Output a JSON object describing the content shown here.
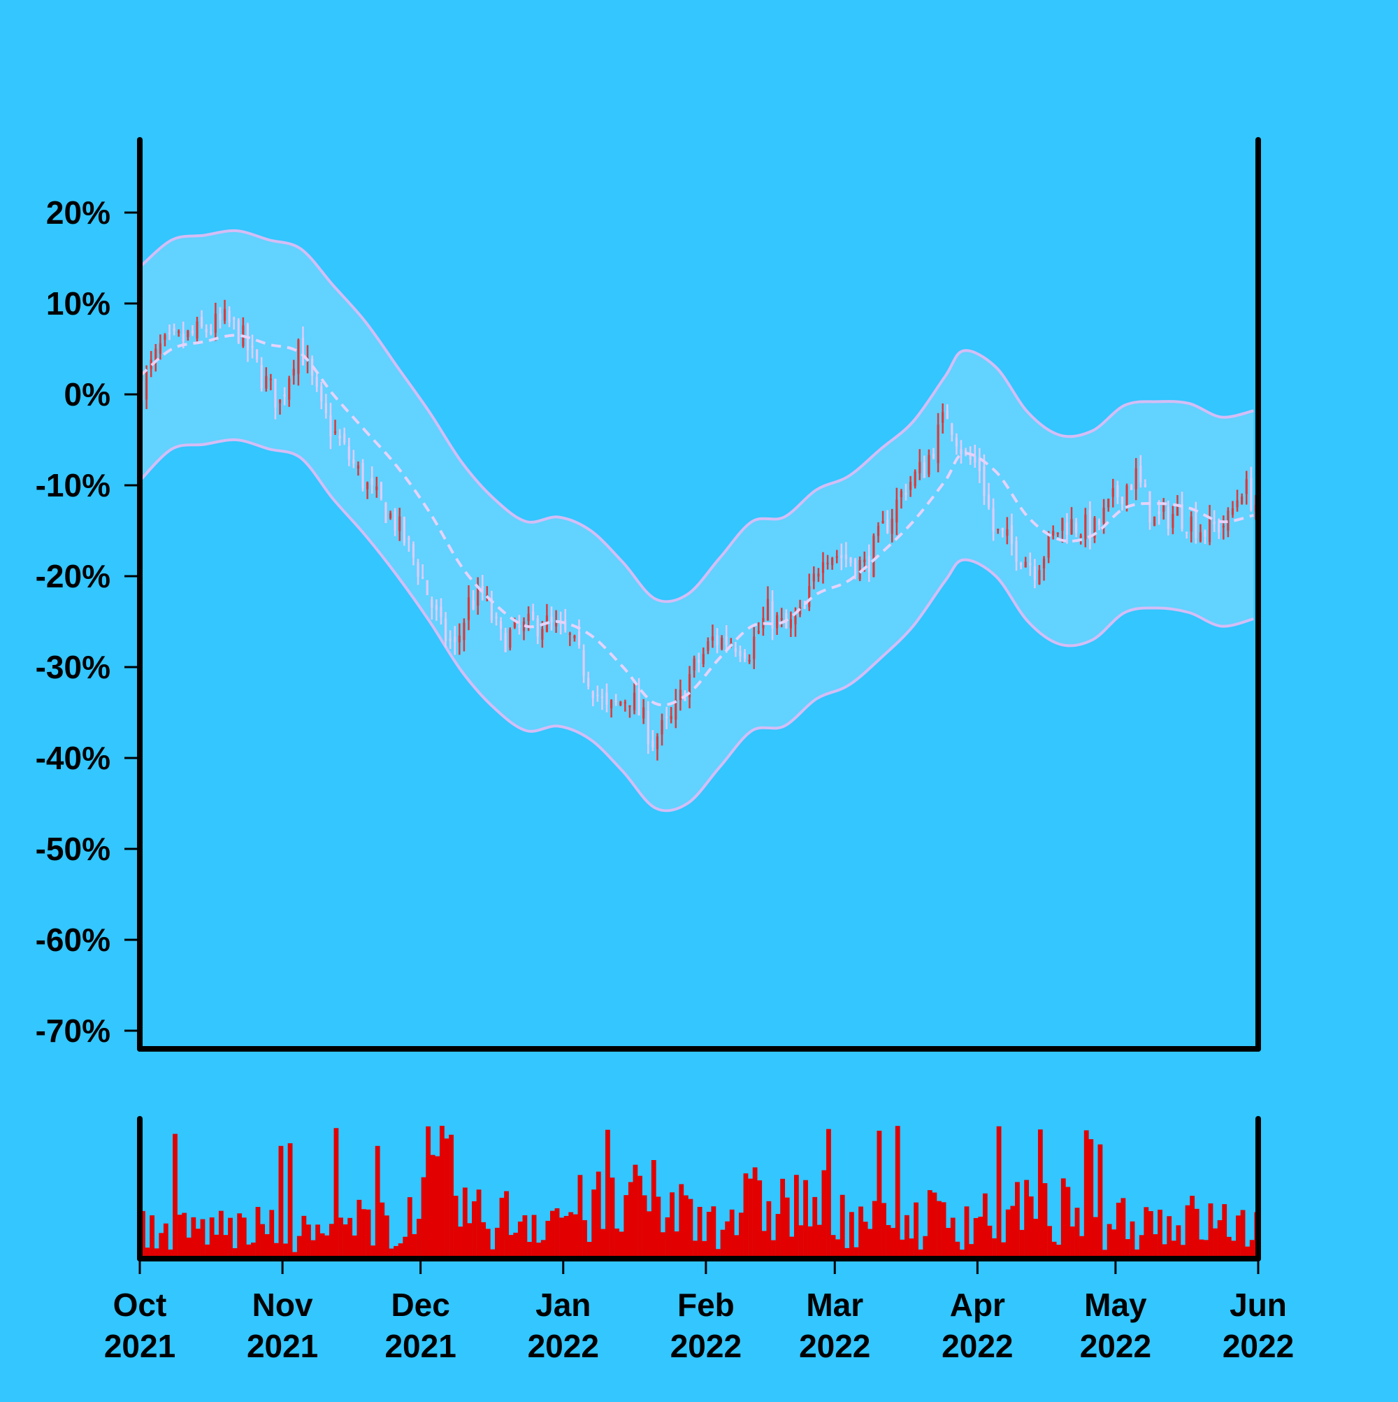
{
  "colors": {
    "background": "#33c6ff",
    "band_fill": "#62d2ff",
    "band_line": "#d5bdf5",
    "ma_line": "#e6d3fa",
    "up_bar": "#d93a3a",
    "down_bar": "#e0ccf8",
    "volume": "#e20000",
    "axis": "#000000"
  },
  "chart_data": {
    "type": "candlestick",
    "title": "",
    "ylabel": "",
    "xlabel": "",
    "ylim": [
      -72,
      28
    ],
    "y_ticks": [
      20,
      10,
      0,
      -10,
      -20,
      -30,
      -40,
      -50,
      -60,
      -70
    ],
    "y_tick_labels": [
      "20%",
      "10%",
      "0%",
      "-10%",
      "-20%",
      "-30%",
      "-40%",
      "-50%",
      "-60%",
      "-70%"
    ],
    "x_range": [
      "2021-10-01",
      "2022-06-01"
    ],
    "x_ticks": [
      "2021-10-01",
      "2021-11-01",
      "2021-12-01",
      "2022-01-01",
      "2022-02-01",
      "2022-03-01",
      "2022-04-01",
      "2022-05-01",
      "2022-06-01"
    ],
    "x_tick_labels": [
      {
        "month": "Oct",
        "year": "2021"
      },
      {
        "month": "Nov",
        "year": "2021"
      },
      {
        "month": "Dec",
        "year": "2021"
      },
      {
        "month": "Jan",
        "year": "2022"
      },
      {
        "month": "Feb",
        "year": "2022"
      },
      {
        "month": "Mar",
        "year": "2022"
      },
      {
        "month": "Apr",
        "year": "2022"
      },
      {
        "month": "May",
        "year": "2022"
      },
      {
        "month": "Jun",
        "year": "2022"
      }
    ],
    "grid": false,
    "legend": "none",
    "moving_average": {
      "style": "dashed",
      "points": [
        [
          "2021-10-01",
          2
        ],
        [
          "2021-10-08",
          5
        ],
        [
          "2021-10-15",
          5.8
        ],
        [
          "2021-10-22",
          6.5
        ],
        [
          "2021-10-29",
          5.5
        ],
        [
          "2021-11-05",
          4.5
        ],
        [
          "2021-11-12",
          0
        ],
        [
          "2021-11-19",
          -4
        ],
        [
          "2021-11-26",
          -8
        ],
        [
          "2021-12-03",
          -13
        ],
        [
          "2021-12-10",
          -19
        ],
        [
          "2021-12-17",
          -23
        ],
        [
          "2021-12-24",
          -25.5
        ],
        [
          "2021-12-31",
          -25
        ],
        [
          "2022-01-07",
          -26.5
        ],
        [
          "2022-01-14",
          -30
        ],
        [
          "2022-01-21",
          -34
        ],
        [
          "2022-01-28",
          -33
        ],
        [
          "2022-02-04",
          -29
        ],
        [
          "2022-02-11",
          -25.5
        ],
        [
          "2022-02-18",
          -25
        ],
        [
          "2022-02-25",
          -22
        ],
        [
          "2022-03-04",
          -20.5
        ],
        [
          "2022-03-11",
          -17.5
        ],
        [
          "2022-03-18",
          -14
        ],
        [
          "2022-03-25",
          -9.5
        ],
        [
          "2022-03-29",
          -6.5
        ],
        [
          "2022-04-05",
          -8.5
        ],
        [
          "2022-04-12",
          -13.5
        ],
        [
          "2022-04-19",
          -16
        ],
        [
          "2022-04-26",
          -15.5
        ],
        [
          "2022-05-03",
          -12.5
        ],
        [
          "2022-05-10",
          -12
        ],
        [
          "2022-05-17",
          -12.5
        ],
        [
          "2022-05-24",
          -14
        ],
        [
          "2022-05-31",
          -13.3
        ]
      ]
    },
    "band_upper": [
      [
        "2021-10-01",
        14
      ],
      [
        "2021-10-08",
        17
      ],
      [
        "2021-10-15",
        17.5
      ],
      [
        "2021-10-22",
        18
      ],
      [
        "2021-10-29",
        17
      ],
      [
        "2021-11-05",
        16
      ],
      [
        "2021-11-12",
        12
      ],
      [
        "2021-11-19",
        8
      ],
      [
        "2021-11-26",
        3
      ],
      [
        "2021-12-03",
        -2
      ],
      [
        "2021-12-10",
        -7.5
      ],
      [
        "2021-12-17",
        -11.5
      ],
      [
        "2021-12-24",
        -14
      ],
      [
        "2021-12-31",
        -13.5
      ],
      [
        "2022-01-07",
        -15
      ],
      [
        "2022-01-14",
        -18.5
      ],
      [
        "2022-01-21",
        -22.5
      ],
      [
        "2022-01-28",
        -22
      ],
      [
        "2022-02-04",
        -18
      ],
      [
        "2022-02-11",
        -14
      ],
      [
        "2022-02-18",
        -13.5
      ],
      [
        "2022-02-25",
        -10.5
      ],
      [
        "2022-03-04",
        -9
      ],
      [
        "2022-03-11",
        -6
      ],
      [
        "2022-03-18",
        -3
      ],
      [
        "2022-03-25",
        2
      ],
      [
        "2022-03-29",
        4.8
      ],
      [
        "2022-04-05",
        3
      ],
      [
        "2022-04-12",
        -2
      ],
      [
        "2022-04-19",
        -4.5
      ],
      [
        "2022-04-26",
        -4
      ],
      [
        "2022-05-03",
        -1.2
      ],
      [
        "2022-05-10",
        -0.8
      ],
      [
        "2022-05-17",
        -1
      ],
      [
        "2022-05-24",
        -2.5
      ],
      [
        "2022-05-31",
        -1.8
      ]
    ],
    "band_lower": [
      [
        "2021-10-01",
        -9.5
      ],
      [
        "2021-10-08",
        -6
      ],
      [
        "2021-10-15",
        -5.5
      ],
      [
        "2021-10-22",
        -5
      ],
      [
        "2021-10-29",
        -6
      ],
      [
        "2021-11-05",
        -7
      ],
      [
        "2021-11-12",
        -11.5
      ],
      [
        "2021-11-19",
        -15.5
      ],
      [
        "2021-11-26",
        -20
      ],
      [
        "2021-12-03",
        -25
      ],
      [
        "2021-12-10",
        -30.5
      ],
      [
        "2021-12-17",
        -34.5
      ],
      [
        "2021-12-24",
        -37
      ],
      [
        "2021-12-31",
        -36.5
      ],
      [
        "2022-01-07",
        -38
      ],
      [
        "2022-01-14",
        -41.5
      ],
      [
        "2022-01-21",
        -45.5
      ],
      [
        "2022-01-28",
        -45
      ],
      [
        "2022-02-04",
        -41
      ],
      [
        "2022-02-11",
        -37
      ],
      [
        "2022-02-18",
        -36.5
      ],
      [
        "2022-02-25",
        -33.5
      ],
      [
        "2022-03-04",
        -32
      ],
      [
        "2022-03-11",
        -29
      ],
      [
        "2022-03-18",
        -25.5
      ],
      [
        "2022-03-25",
        -20.5
      ],
      [
        "2022-03-29",
        -18.2
      ],
      [
        "2022-04-05",
        -20
      ],
      [
        "2022-04-12",
        -25
      ],
      [
        "2022-04-19",
        -27.5
      ],
      [
        "2022-04-26",
        -27
      ],
      [
        "2022-05-03",
        -24
      ],
      [
        "2022-05-10",
        -23.5
      ],
      [
        "2022-05-17",
        -24
      ],
      [
        "2022-05-24",
        -25.5
      ],
      [
        "2022-05-31",
        -24.7
      ]
    ],
    "price_path": [
      [
        "2021-10-01",
        1
      ],
      [
        "2021-10-05",
        5
      ],
      [
        "2021-10-12",
        6.5
      ],
      [
        "2021-10-19",
        8
      ],
      [
        "2021-10-22",
        7
      ],
      [
        "2021-10-27",
        2
      ],
      [
        "2021-10-31",
        -1
      ],
      [
        "2021-11-04",
        6
      ],
      [
        "2021-11-09",
        -2
      ],
      [
        "2021-11-15",
        -7
      ],
      [
        "2021-11-20",
        -11
      ],
      [
        "2021-11-25",
        -14
      ],
      [
        "2021-11-30",
        -19
      ],
      [
        "2021-12-05",
        -26
      ],
      [
        "2021-12-08",
        -28
      ],
      [
        "2021-12-11",
        -23
      ],
      [
        "2021-12-14",
        -22
      ],
      [
        "2021-12-18",
        -27
      ],
      [
        "2021-12-22",
        -26
      ],
      [
        "2021-12-27",
        -25
      ],
      [
        "2022-01-02",
        -27
      ],
      [
        "2022-01-06",
        -31
      ],
      [
        "2022-01-10",
        -35
      ],
      [
        "2022-01-15",
        -33
      ],
      [
        "2022-01-20",
        -38
      ],
      [
        "2022-01-24",
        -36
      ],
      [
        "2022-01-28",
        -31
      ],
      [
        "2022-02-02",
        -27
      ],
      [
        "2022-02-06",
        -27
      ],
      [
        "2022-02-10",
        -28
      ],
      [
        "2022-02-14",
        -24
      ],
      [
        "2022-02-18",
        -26
      ],
      [
        "2022-02-22",
        -24
      ],
      [
        "2022-02-26",
        -17
      ],
      [
        "2022-03-03",
        -18
      ],
      [
        "2022-03-07",
        -19
      ],
      [
        "2022-03-11",
        -15
      ],
      [
        "2022-03-16",
        -10
      ],
      [
        "2022-03-20",
        -8
      ],
      [
        "2022-03-25",
        -2
      ],
      [
        "2022-03-29",
        -7
      ],
      [
        "2022-04-01",
        -8
      ],
      [
        "2022-04-04",
        -15
      ],
      [
        "2022-04-09",
        -17
      ],
      [
        "2022-04-13",
        -19
      ],
      [
        "2022-04-19",
        -14
      ],
      [
        "2022-04-26",
        -15
      ],
      [
        "2022-05-01",
        -11
      ],
      [
        "2022-05-05",
        -9
      ],
      [
        "2022-05-09",
        -14
      ],
      [
        "2022-05-14",
        -13
      ],
      [
        "2022-05-20",
        -15
      ],
      [
        "2022-05-25",
        -14
      ],
      [
        "2022-05-28",
        -10
      ],
      [
        "2022-05-31",
        -12
      ]
    ],
    "volume_profile": [
      [
        "2021-10-01",
        0.25
      ],
      [
        "2021-10-20",
        0.28
      ],
      [
        "2021-11-10",
        0.22
      ],
      [
        "2021-11-20",
        0.35
      ],
      [
        "2021-12-01",
        0.45
      ],
      [
        "2021-12-05",
        0.75
      ],
      [
        "2021-12-12",
        0.35
      ],
      [
        "2021-12-25",
        0.4
      ],
      [
        "2022-01-10",
        0.45
      ],
      [
        "2022-01-20",
        0.5
      ],
      [
        "2022-01-31",
        0.4
      ],
      [
        "2022-02-15",
        0.5
      ],
      [
        "2022-03-01",
        0.45
      ],
      [
        "2022-03-15",
        0.35
      ],
      [
        "2022-04-01",
        0.4
      ],
      [
        "2022-04-15",
        0.42
      ],
      [
        "2022-05-01",
        0.38
      ],
      [
        "2022-05-31",
        0.3
      ]
    ]
  }
}
